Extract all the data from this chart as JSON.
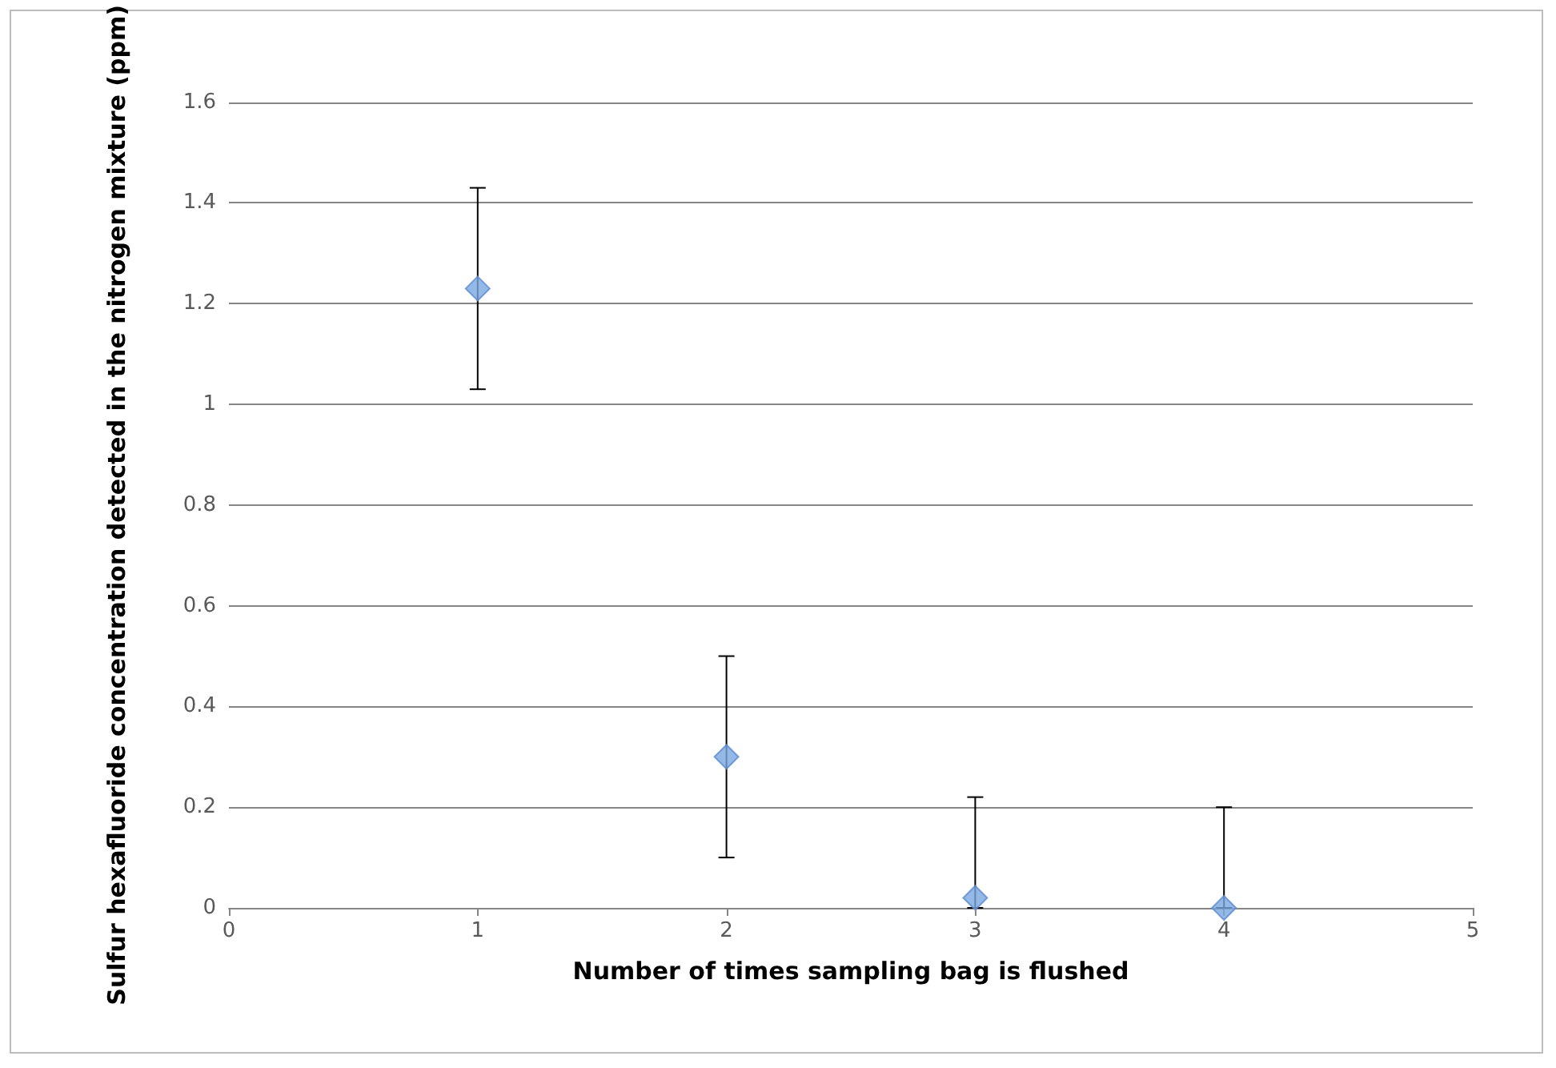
{
  "chart_data": {
    "type": "scatter",
    "xlabel": "Number of times sampling bag is flushed",
    "ylabel": "Sulfur hexafluoride concentration detected in the nitrogen mixture (ppm)",
    "x": [
      1,
      2,
      3,
      4
    ],
    "values": [
      1.23,
      0.3,
      0.02,
      0
    ],
    "errors": [
      0.2,
      0.2,
      [
        0,
        0.22
      ],
      [
        0,
        0.2
      ]
    ],
    "color": "#7ba7e0",
    "marker": "diamond",
    "xlim": [
      0,
      5
    ],
    "xticks": [
      0,
      1,
      2,
      3,
      4,
      5
    ],
    "ylim": [
      0,
      1.6
    ],
    "yticks": [
      0,
      0.2,
      0.4,
      0.6,
      0.8,
      1,
      1.2,
      1.4,
      1.6
    ],
    "grid": "y"
  }
}
